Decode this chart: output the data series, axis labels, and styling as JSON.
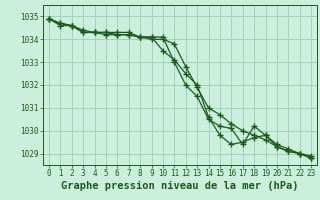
{
  "background_color": "#cceedd",
  "grid_color": "#99ccbb",
  "line_color": "#1a5c1a",
  "marker_color": "#1a5c1a",
  "xlabel": "Graphe pression niveau de la mer (hPa)",
  "ylim": [
    1028.5,
    1035.5
  ],
  "xlim": [
    -0.5,
    23.5
  ],
  "yticks": [
    1029,
    1030,
    1031,
    1032,
    1033,
    1034,
    1035
  ],
  "xticks": [
    0,
    1,
    2,
    3,
    4,
    5,
    6,
    7,
    8,
    9,
    10,
    11,
    12,
    13,
    14,
    15,
    16,
    17,
    18,
    19,
    20,
    21,
    22,
    23
  ],
  "series": [
    [
      1034.9,
      1034.7,
      1034.6,
      1034.3,
      1034.3,
      1034.2,
      1034.2,
      1034.2,
      1034.1,
      1034.1,
      1033.5,
      1033.1,
      1032.5,
      1032.0,
      1030.6,
      1029.8,
      1029.4,
      1029.5,
      1029.7,
      1029.8,
      1029.3,
      1029.1,
      1029.0,
      1028.8
    ],
    [
      1034.9,
      1034.6,
      1034.6,
      1034.3,
      1034.3,
      1034.3,
      1034.3,
      1034.3,
      1034.1,
      1034.0,
      1034.0,
      1033.8,
      1032.8,
      1031.9,
      1031.0,
      1030.7,
      1030.3,
      1030.0,
      1029.8,
      1029.6,
      1029.3,
      1029.1,
      1029.0,
      1028.9
    ],
    [
      1034.9,
      1034.7,
      1034.6,
      1034.4,
      1034.3,
      1034.3,
      1034.2,
      1034.2,
      1034.1,
      1034.1,
      1034.1,
      1033.0,
      1032.0,
      1031.5,
      1030.5,
      1030.2,
      1030.1,
      1029.4,
      1030.2,
      1029.8,
      1029.4,
      1029.2,
      1029.0,
      1028.8
    ]
  ],
  "tick_fontsize": 5.5,
  "xlabel_fontsize": 7.5
}
